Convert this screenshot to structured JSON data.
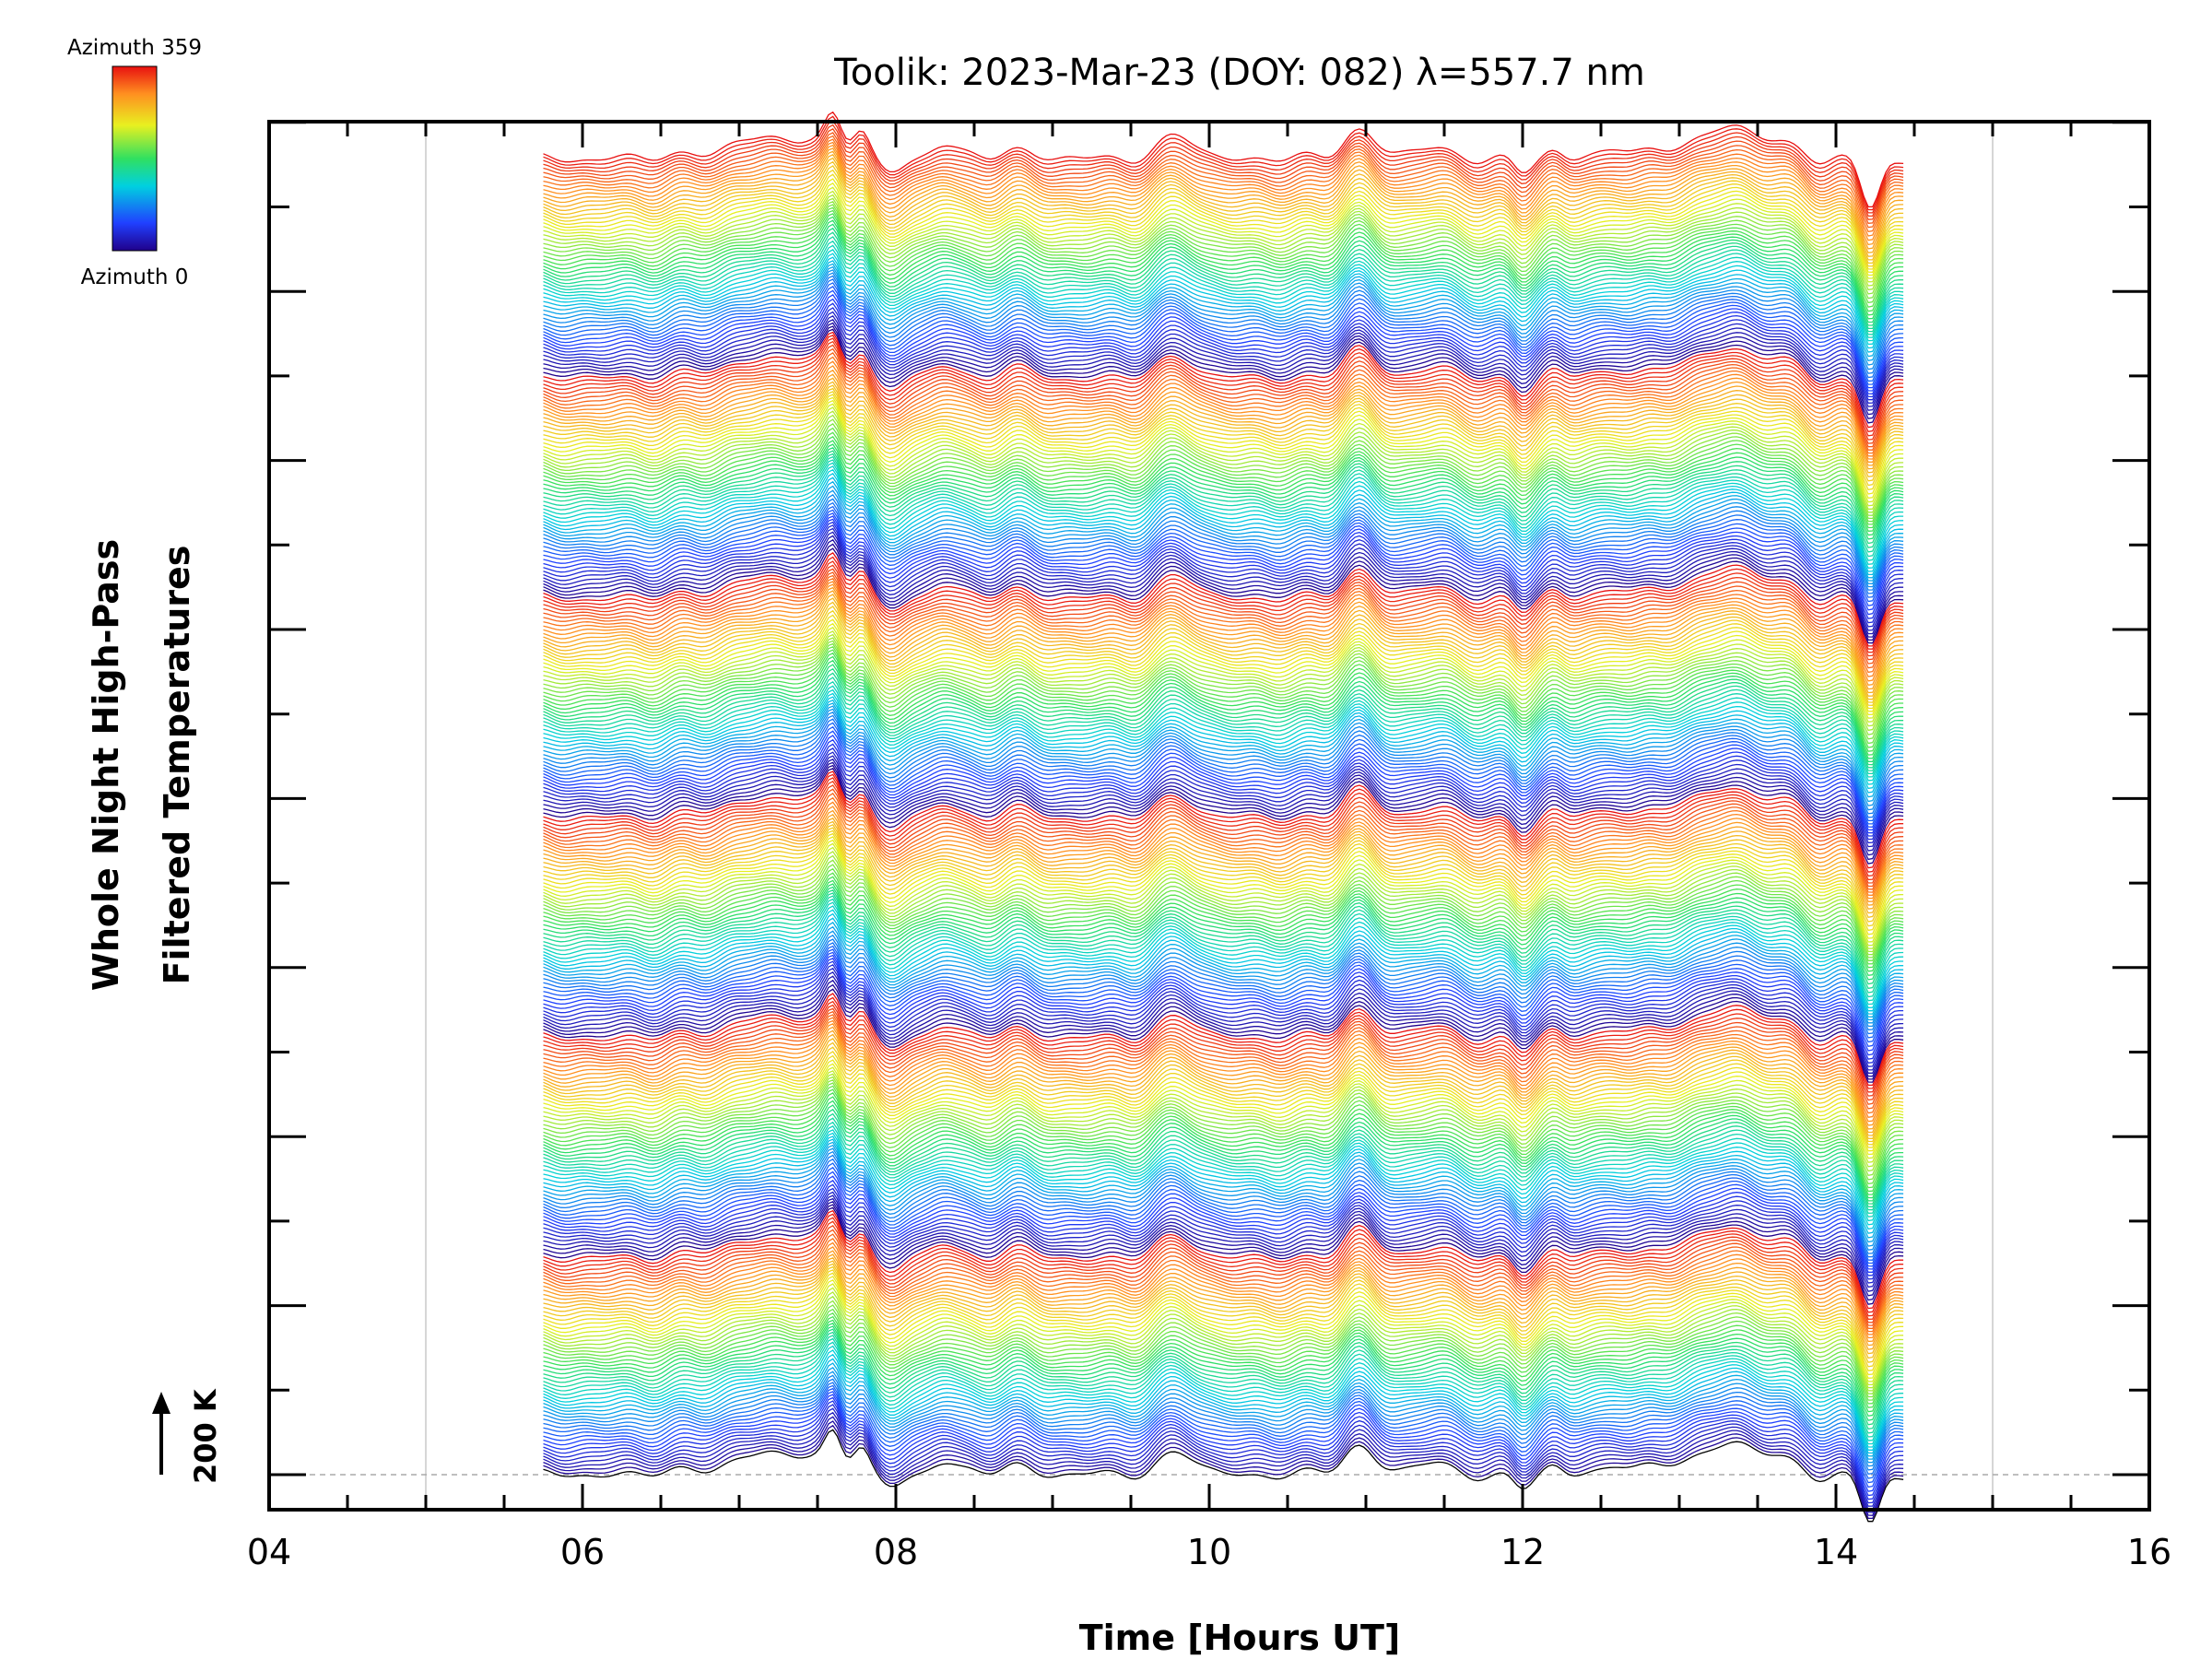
{
  "chart_data": {
    "type": "line",
    "title": "Toolik: 2023-Mar-23 (DOY: 082) λ=557.7 nm",
    "xlabel": "Time [Hours UT]",
    "ylabel_line1": "Whole Night High-Pass",
    "ylabel_line2": "Filtered Temperatures",
    "xlim": [
      4,
      16
    ],
    "x_tick_labels": [
      "04",
      "06",
      "08",
      "10",
      "12",
      "14",
      "16"
    ],
    "x_tick_values": [
      4,
      6,
      8,
      10,
      12,
      14,
      16
    ],
    "grid_x_values": [
      5,
      15
    ],
    "scale_bar_label": "200 K",
    "colorbar": {
      "top_label": "Azimuth 359",
      "bottom_label": "Azimuth 0",
      "colormap": "rainbow (blue to red)"
    },
    "data_time_range": [
      5.75,
      14.45
    ],
    "series_count": 360,
    "series_description": "one high-pass filtered temperature trace per azimuth 0-359, stacked vertically (waterfall), colour-coded by azimuth",
    "features_x": [
      7.3,
      7.6,
      7.75,
      8.0,
      8.3,
      8.75,
      9.8,
      10.95,
      11.4,
      12.0,
      12.2,
      12.6,
      12.85,
      13.35,
      13.9,
      14.2
    ],
    "grid": true,
    "legend_position": "top-left"
  },
  "colors": {
    "background": "#ffffff",
    "axes": "#000000",
    "grid": "#c8c8c8"
  }
}
